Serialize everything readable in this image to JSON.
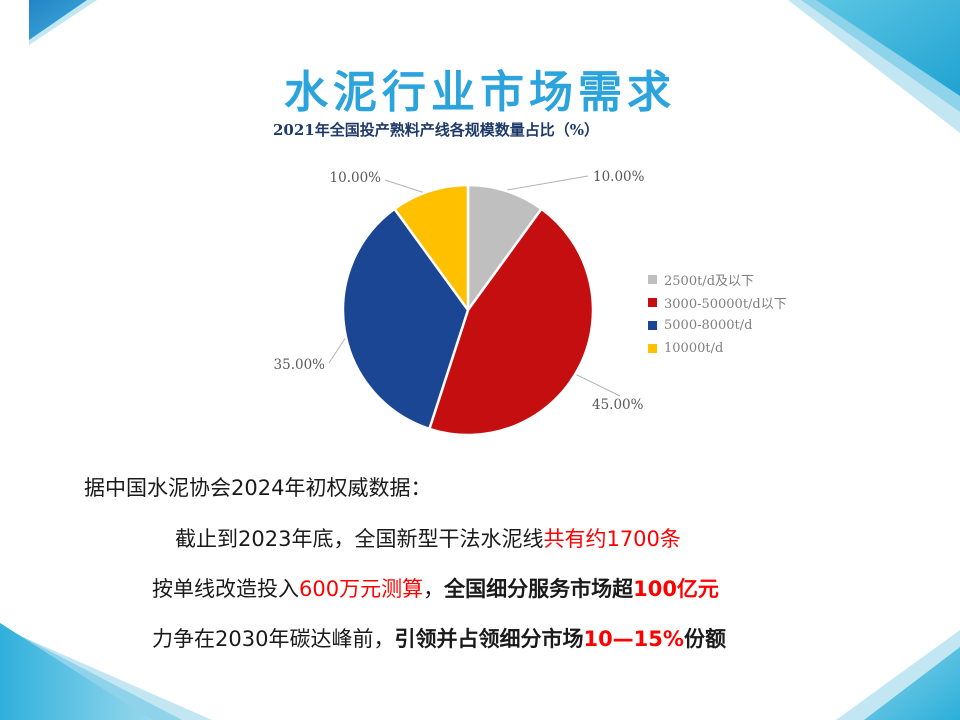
{
  "slide_title": {
    "text": "水泥行业市场需求",
    "color": "#2BA3DC"
  },
  "chart_data": {
    "type": "pie",
    "title": "2021年全国投产熟料产线各规模数量占比（%）",
    "title_color": "#1E3A68",
    "start_angle_deg": 0,
    "direction": "clockwise",
    "legend_position": "right",
    "label_format": "percent-2dp",
    "label_text_color": "#595959",
    "legend_text_color": "#7F7F7F",
    "slices": [
      {
        "label": "2500t/d及以下",
        "value": 10.0,
        "display": "10.00%",
        "color": "#BFBFBF"
      },
      {
        "label": "3000-50000t/d以下",
        "value": 45.0,
        "display": "45.00%",
        "color": "#C40E10"
      },
      {
        "label": "5000-8000t/d",
        "value": 35.0,
        "display": "35.00%",
        "color": "#1B4693"
      },
      {
        "label": "10000t/d",
        "value": 10.0,
        "display": "10.00%",
        "color": "#FFC000"
      }
    ]
  },
  "body": {
    "lines": [
      {
        "segments": [
          {
            "text": "据中国水泥协会2024年初权威数据：",
            "color": "#1A1A1A",
            "bold": false
          }
        ]
      },
      {
        "segments": [
          {
            "text": "截止到2023年底，全国新型干法水泥线",
            "color": "#1A1A1A",
            "bold": false
          },
          {
            "text": "共有约1700条",
            "color": "#FF0000",
            "bold": false
          }
        ]
      },
      {
        "segments": [
          {
            "text": "按单线改造投入",
            "color": "#1A1A1A",
            "bold": false
          },
          {
            "text": "600万元测算",
            "color": "#FF0000",
            "bold": false
          },
          {
            "text": "，",
            "color": "#1A1A1A",
            "bold": false
          },
          {
            "text": "全国细分服务市场超",
            "color": "#1A1A1A",
            "bold": true
          },
          {
            "text": "100亿元",
            "color": "#FF0000",
            "bold": true
          }
        ]
      },
      {
        "segments": [
          {
            "text": "力争在2030年碳达峰前，",
            "color": "#1A1A1A",
            "bold": false
          },
          {
            "text": "引领并占领细分市场",
            "color": "#1A1A1A",
            "bold": true
          },
          {
            "text": "10—15%",
            "color": "#FF0000",
            "bold": true
          },
          {
            "text": "份额",
            "color": "#1A1A1A",
            "bold": true
          }
        ]
      }
    ]
  },
  "decor": {
    "corner_accent_cyan": "#2BAFD9",
    "corner_accent_light": "#C3E6F3"
  }
}
